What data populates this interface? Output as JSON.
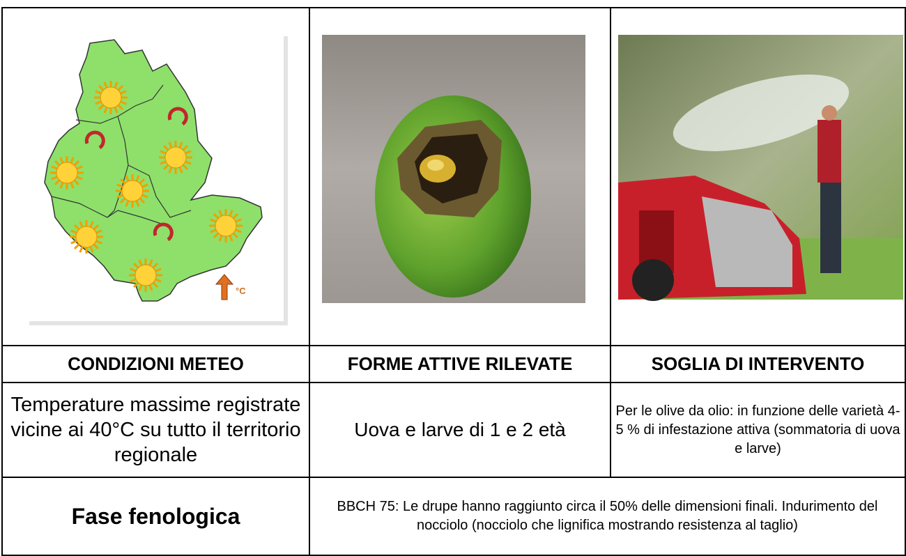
{
  "table": {
    "headers": [
      "CONDIZIONI METEO",
      "FORME ATTIVE RILEVATE",
      "SOGLIA DI INTERVENTO"
    ],
    "rows": [
      [
        "Temperature massime registrate vicine ai 40°C su tutto il territorio regionale",
        "Uova e larve di 1 e 2 età",
        "Per le olive da olio: in funzione delle varietà 4-5 % di infestazione attiva (sommatoria di uova e larve)"
      ],
      [
        "Fase fenologica",
        "BBCH 75: Le drupe hanno raggiunto circa il 50% delle dimensioni finali. Indurimento del nocciolo (nocciolo che lignifica mostrando resistenza al taglio)"
      ]
    ]
  },
  "map": {
    "label": "°C"
  }
}
